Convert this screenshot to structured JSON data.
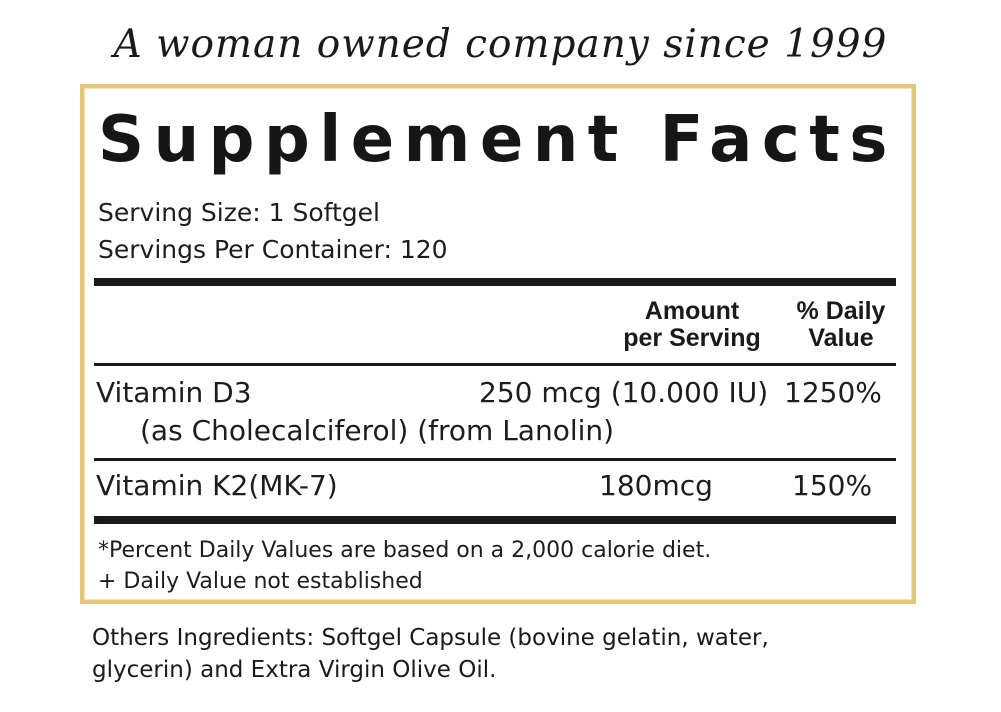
{
  "tagline": "A woman owned company since 1999",
  "facts": {
    "title": "Supplement Facts",
    "serving_size": "Serving Size: 1 Softgel",
    "servings_per_container": "Servings Per Container: 120",
    "col_amount_line1": "Amount",
    "col_amount_line2": "per Serving",
    "col_dv_line1": "% Daily",
    "col_dv_line2": "Value",
    "rows": [
      {
        "name": "Vitamin D3",
        "sub": "(as Cholecalciferol) (from Lanolin)",
        "amount": "250 mcg (10.000 IU)",
        "dv": "1250%"
      },
      {
        "name": "Vitamin K2(MK-7)",
        "amount": "180mcg",
        "dv": "150%"
      }
    ],
    "footnote1": "*Percent Daily Values are based on a 2,000 calorie diet.",
    "footnote2": "+ Daily Value not established"
  },
  "others": {
    "line1": "Others Ingredients: Softgel Capsule (bovine gelatin, water,",
    "line2": "glycerin) and Extra Virgin Olive Oil."
  },
  "colors": {
    "border_gold": "#e2c77a",
    "text": "#1a1a1a"
  }
}
